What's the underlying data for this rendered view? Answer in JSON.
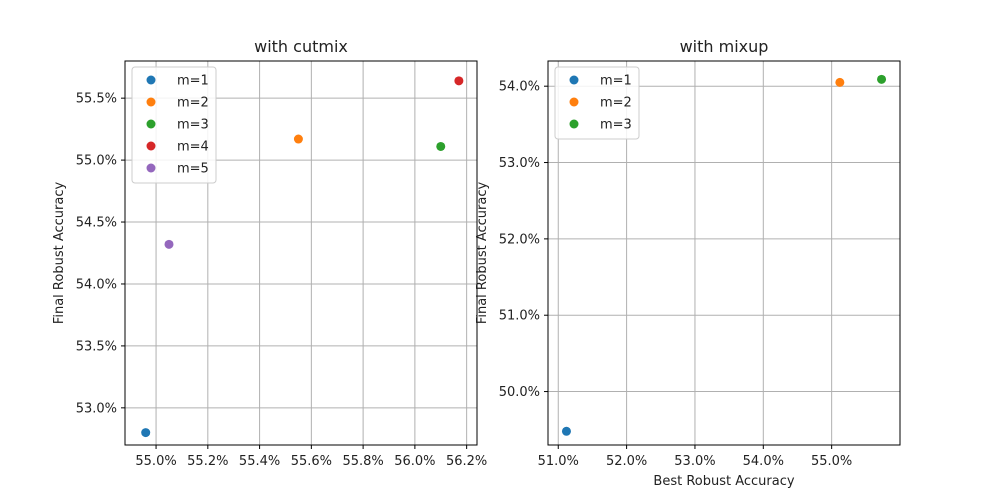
{
  "chart_data": [
    {
      "type": "scatter",
      "title": "with cutmix",
      "xlabel": "",
      "ylabel": "Final Robust Accuracy",
      "xlim": [
        54.88,
        56.24
      ],
      "ylim": [
        52.7,
        55.8
      ],
      "xticks": [
        "55.0%",
        "55.2%",
        "55.4%",
        "55.6%",
        "55.8%",
        "56.0%",
        "56.2%"
      ],
      "xtick_values": [
        55.0,
        55.2,
        55.4,
        55.6,
        55.8,
        56.0,
        56.2
      ],
      "yticks": [
        "53.0%",
        "53.5%",
        "54.0%",
        "54.5%",
        "55.0%",
        "55.5%"
      ],
      "ytick_values": [
        53.0,
        53.5,
        54.0,
        54.5,
        55.0,
        55.5
      ],
      "grid": true,
      "legend_position": "top-left",
      "series": [
        {
          "name": "m=1",
          "color": "#1f77b4",
          "x": [
            54.96
          ],
          "y": [
            52.8
          ]
        },
        {
          "name": "m=2",
          "color": "#ff7f0e",
          "x": [
            55.55
          ],
          "y": [
            55.17
          ]
        },
        {
          "name": "m=3",
          "color": "#2ca02c",
          "x": [
            56.1
          ],
          "y": [
            55.11
          ]
        },
        {
          "name": "m=4",
          "color": "#d62728",
          "x": [
            56.17
          ],
          "y": [
            55.64
          ]
        },
        {
          "name": "m=5",
          "color": "#9467bd",
          "x": [
            55.05
          ],
          "y": [
            54.32
          ]
        }
      ]
    },
    {
      "type": "scatter",
      "title": "with mixup",
      "xlabel": "Best Robust Accuracy",
      "ylabel": "Final Robust Accuracy",
      "xlim": [
        50.85,
        56.0
      ],
      "ylim": [
        49.3,
        54.33
      ],
      "xticks": [
        "51.0%",
        "52.0%",
        "53.0%",
        "54.0%",
        "55.0%"
      ],
      "xtick_values": [
        51.0,
        52.0,
        53.0,
        54.0,
        55.0
      ],
      "yticks": [
        "50.0%",
        "51.0%",
        "52.0%",
        "53.0%",
        "54.0%"
      ],
      "ytick_values": [
        50.0,
        51.0,
        52.0,
        53.0,
        54.0
      ],
      "grid": true,
      "legend_position": "top-left",
      "series": [
        {
          "name": "m=1",
          "color": "#1f77b4",
          "x": [
            51.12
          ],
          "y": [
            49.48
          ]
        },
        {
          "name": "m=2",
          "color": "#ff7f0e",
          "x": [
            55.12
          ],
          "y": [
            54.05
          ]
        },
        {
          "name": "m=3",
          "color": "#2ca02c",
          "x": [
            55.73
          ],
          "y": [
            54.09
          ]
        }
      ]
    }
  ]
}
